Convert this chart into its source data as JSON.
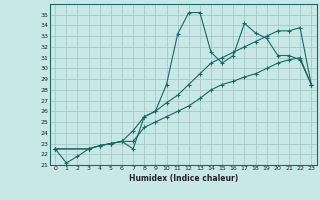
{
  "xlabel": "Humidex (Indice chaleur)",
  "bg_color": "#c8e8e8",
  "grid_color": "#a8c8c8",
  "line_color": "#1a6868",
  "xlim": [
    -0.5,
    23.5
  ],
  "ylim": [
    21,
    36
  ],
  "yticks": [
    21,
    22,
    23,
    24,
    25,
    26,
    27,
    28,
    29,
    30,
    31,
    32,
    33,
    34,
    35
  ],
  "xticks": [
    0,
    1,
    2,
    3,
    4,
    5,
    6,
    7,
    8,
    9,
    10,
    11,
    12,
    13,
    14,
    15,
    16,
    17,
    18,
    19,
    20,
    21,
    22,
    23
  ],
  "line1_x": [
    0,
    1,
    2,
    3,
    4,
    5,
    6,
    7,
    8,
    9,
    10,
    11,
    12,
    13,
    14,
    15,
    16,
    17,
    18,
    19,
    20,
    21,
    22,
    23
  ],
  "line1_y": [
    22.5,
    21.2,
    21.8,
    22.5,
    22.8,
    23.0,
    23.2,
    22.5,
    25.5,
    26.0,
    28.5,
    33.2,
    35.2,
    35.2,
    31.5,
    30.5,
    31.2,
    34.2,
    33.3,
    32.8,
    31.2,
    31.2,
    30.8,
    28.5
  ],
  "line2_x": [
    0,
    3,
    4,
    5,
    6,
    7,
    8,
    9,
    10,
    11,
    12,
    13,
    14,
    15,
    16,
    17,
    18,
    19,
    20,
    21,
    22,
    23
  ],
  "line2_y": [
    22.5,
    22.5,
    22.8,
    23.0,
    23.2,
    24.2,
    25.5,
    26.0,
    26.8,
    27.5,
    28.5,
    29.5,
    30.5,
    31.0,
    31.5,
    32.0,
    32.5,
    33.0,
    33.5,
    33.5,
    33.8,
    28.5
  ],
  "line3_x": [
    0,
    3,
    4,
    5,
    6,
    7,
    8,
    9,
    10,
    11,
    12,
    13,
    14,
    15,
    16,
    17,
    18,
    19,
    20,
    21,
    22,
    23
  ],
  "line3_y": [
    22.5,
    22.5,
    22.8,
    23.0,
    23.2,
    23.2,
    24.5,
    25.0,
    25.5,
    26.0,
    26.5,
    27.2,
    28.0,
    28.5,
    28.8,
    29.2,
    29.5,
    30.0,
    30.5,
    30.8,
    31.0,
    28.5
  ]
}
